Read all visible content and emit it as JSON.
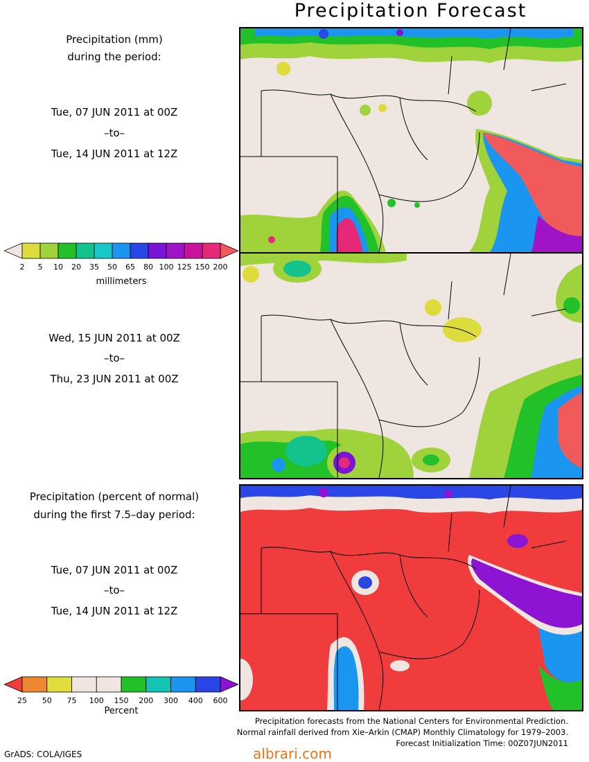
{
  "title": "Precipitation Forecast",
  "panel1": {
    "heading_line1": "Precipitation (mm)",
    "heading_line2": "during the period:",
    "start": "Tue, 07 JUN 2011 at 00Z",
    "to": "–to–",
    "end": "Tue, 14 JUN 2011 at 12Z"
  },
  "panel2": {
    "start": "Wed, 15 JUN 2011 at 00Z",
    "to": "–to–",
    "end": "Thu, 23 JUN 2011 at 00Z"
  },
  "panel3": {
    "heading_line1": "Precipitation (percent of normal)",
    "heading_line2": "during the first 7.5–day period:",
    "start": "Tue, 07 JUN 2011 at 00Z",
    "to": "–to–",
    "end": "Tue, 14 JUN 2011 at 12Z"
  },
  "colorbar_mm": {
    "unit": "millimeters",
    "ticks": [
      "2",
      "5",
      "10",
      "20",
      "35",
      "50",
      "65",
      "80",
      "100",
      "125",
      "150",
      "200"
    ],
    "colors": [
      "#dcdc3c",
      "#a0d23c",
      "#22c12a",
      "#14c38c",
      "#18c8c8",
      "#1a96f0",
      "#2a46e6",
      "#7a14d6",
      "#a014c8",
      "#c8149c",
      "#e62878",
      "#f05a5a"
    ]
  },
  "colorbar_pct": {
    "unit": "Percent",
    "ticks": [
      "25",
      "50",
      "75",
      "100",
      "150",
      "200",
      "300",
      "400",
      "600"
    ],
    "colors": [
      "#ee8830",
      "#e0dc3c",
      "#efe6e2",
      "#efe6e2",
      "#22c12a",
      "#14c3b4",
      "#1a96f0",
      "#2a46e6"
    ],
    "left_color": "#f03c3c",
    "right_color": "#8c14d2"
  },
  "footer": {
    "line1": "Precipitation forecasts from the National Centers for Environmental Prediction.",
    "line2": "Normal rainfall derived from Xie–Arkin (CMAP) Monthly Climatology for 1979–2003.",
    "line3": "Forecast Initialization Time: 00Z07JUN2011"
  },
  "credit": "GrADS: COLA/IGES",
  "watermark": "albrari.com"
}
